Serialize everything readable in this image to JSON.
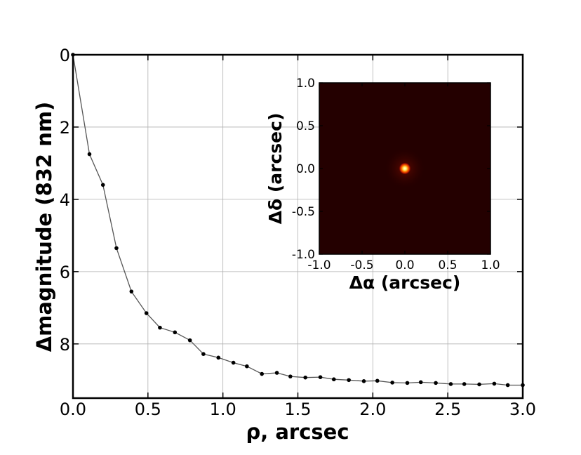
{
  "chart_data": [
    {
      "type": "line",
      "title": "",
      "xlabel": "ρ, arcsec",
      "ylabel": "Δmagnitude (832 nm)",
      "xlim": [
        0.0,
        3.0
      ],
      "ylim": [
        9.5,
        0
      ],
      "y_inverted": true,
      "grid": true,
      "xticks": [
        "0.0",
        "0.5",
        "1.0",
        "1.5",
        "2.0",
        "2.5",
        "3.0"
      ],
      "yticks": [
        "0",
        "2",
        "4",
        "6",
        "8"
      ],
      "series": [
        {
          "marker": "dot",
          "color": "#555555",
          "x": [
            0.0,
            0.11,
            0.2,
            0.29,
            0.39,
            0.49,
            0.58,
            0.68,
            0.78,
            0.87,
            0.97,
            1.07,
            1.16,
            1.26,
            1.36,
            1.45,
            1.55,
            1.65,
            1.74,
            1.84,
            1.94,
            2.03,
            2.13,
            2.23,
            2.32,
            2.42,
            2.52,
            2.61,
            2.71,
            2.81,
            2.9,
            3.0
          ],
          "y": [
            0.0,
            2.75,
            3.6,
            5.35,
            6.55,
            7.15,
            7.55,
            7.68,
            7.9,
            8.28,
            8.38,
            8.52,
            8.62,
            8.83,
            8.8,
            8.9,
            8.93,
            8.92,
            8.98,
            9.0,
            9.03,
            9.02,
            9.07,
            9.08,
            9.06,
            9.08,
            9.11,
            9.11,
            9.12,
            9.1,
            9.14,
            9.14
          ]
        }
      ]
    },
    {
      "type": "heatmap",
      "title": "",
      "xlabel": "Δα (arcsec)",
      "ylabel": "Δδ (arcsec)",
      "xlim": [
        -1.0,
        1.0
      ],
      "ylim": [
        -1.0,
        1.0
      ],
      "xticks": [
        "-1.0",
        "-0.5",
        "0.0",
        "0.5",
        "1.0"
      ],
      "yticks": [
        "-1.0",
        "-0.5",
        "0.0",
        "0.5",
        "1.0"
      ],
      "colormap": "hot",
      "background_color": "#240000",
      "source": {
        "x": 0.0,
        "y": 0.0
      }
    }
  ]
}
